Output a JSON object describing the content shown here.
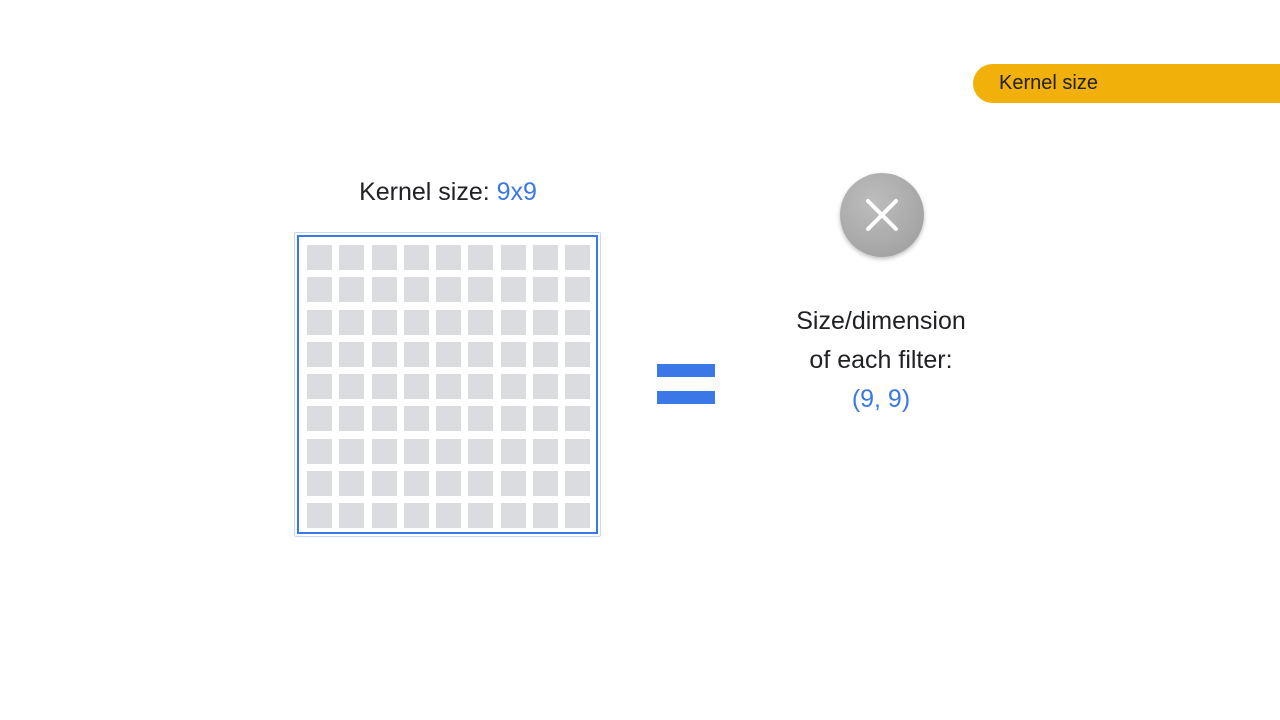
{
  "topic": {
    "label": "Kernel size",
    "color": "#f2b00b"
  },
  "kernel": {
    "heading_prefix": "Kernel size: ",
    "heading_value": "9x9",
    "rows": 9,
    "cols": 9,
    "border_color": "#3b78e7",
    "cell_color": "#dadce0"
  },
  "relation": {
    "symbol_icon": "equals-icon",
    "color": "#3b78e7"
  },
  "badge": {
    "icon": "close-icon",
    "color": "#a9a9a9"
  },
  "filter": {
    "line1": "Size/dimension",
    "line2": "of each filter:",
    "dims": "(9, 9)",
    "accent": "#3b78e7"
  }
}
